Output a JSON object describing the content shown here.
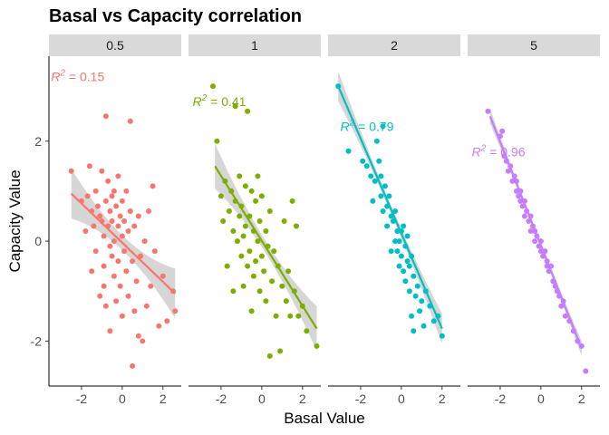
{
  "chart_data": {
    "type": "scatter",
    "title": "Basal vs Capacity correlation",
    "xlabel": "Basal Value",
    "ylabel": "Capacity Value",
    "xlim": [
      -3.6,
      2.9
    ],
    "ylim": [
      -2.9,
      3.7
    ],
    "x_ticks": [
      "-2",
      "0",
      "2"
    ],
    "y_ticks": [
      "-2",
      "0",
      "2"
    ],
    "x_tick_values": [
      -2,
      0,
      2
    ],
    "y_tick_values": [
      -2,
      0,
      2
    ],
    "grid": false,
    "facets": [
      {
        "label": "0.5",
        "color": "#F8766D",
        "r2_prefix": "R",
        "r2_sup": "2",
        "r2_value": "=  0.15",
        "r2_label_pos": [
          -3.5,
          3.2
        ],
        "fit": {
          "x": [
            -2.5,
            2.6
          ],
          "y": [
            0.95,
            -1.05
          ]
        },
        "band_half_width": {
          "start": 0.5,
          "mid": 0.15,
          "end": 0.5
        },
        "points": [
          [
            -2.5,
            1.4
          ],
          [
            -2.0,
            0.8
          ],
          [
            -1.8,
            0.2
          ],
          [
            -1.7,
            0.9
          ],
          [
            -1.6,
            1.5
          ],
          [
            -1.5,
            0.6
          ],
          [
            -1.5,
            -0.6
          ],
          [
            -1.4,
            0.3
          ],
          [
            -1.3,
            -0.2
          ],
          [
            -1.3,
            1.0
          ],
          [
            -1.2,
            0.7
          ],
          [
            -1.1,
            0.5
          ],
          [
            -1.1,
            -1.1
          ],
          [
            -1.0,
            1.4
          ],
          [
            -1.0,
            0.4
          ],
          [
            -0.9,
            0.1
          ],
          [
            -0.9,
            -0.5
          ],
          [
            -0.9,
            -0.9
          ],
          [
            -0.8,
            2.5
          ],
          [
            -0.8,
            0.8
          ],
          [
            -0.8,
            -1.3
          ],
          [
            -0.7,
            0.3
          ],
          [
            -0.7,
            1.2
          ],
          [
            -0.6,
            -0.1
          ],
          [
            -0.6,
            0.6
          ],
          [
            -0.6,
            -1.8
          ],
          [
            -0.5,
            0.9
          ],
          [
            -0.5,
            -0.3
          ],
          [
            -0.5,
            0.4
          ],
          [
            -0.4,
            1.0
          ],
          [
            -0.4,
            0.0
          ],
          [
            -0.4,
            -0.7
          ],
          [
            -0.3,
            0.7
          ],
          [
            -0.3,
            -1.2
          ],
          [
            -0.2,
            0.3
          ],
          [
            -0.2,
            1.3
          ],
          [
            -0.2,
            -0.4
          ],
          [
            -0.1,
            0.5
          ],
          [
            -0.1,
            -0.9
          ],
          [
            0.0,
            0.1
          ],
          [
            0.0,
            0.8
          ],
          [
            0.0,
            -1.5
          ],
          [
            0.1,
            -0.2
          ],
          [
            0.1,
            0.4
          ],
          [
            0.2,
            1.0
          ],
          [
            0.2,
            -0.6
          ],
          [
            0.3,
            0.2
          ],
          [
            0.3,
            -1.1
          ],
          [
            0.4,
            0.6
          ],
          [
            0.4,
            2.4
          ],
          [
            0.5,
            -0.4
          ],
          [
            0.5,
            -2.5
          ],
          [
            0.6,
            0.3
          ],
          [
            0.6,
            -1.4
          ],
          [
            0.7,
            -0.8
          ],
          [
            0.8,
            0.5
          ],
          [
            0.8,
            -1.9
          ],
          [
            0.9,
            -0.3
          ],
          [
            1.0,
            -2.0
          ],
          [
            1.1,
            0.0
          ],
          [
            1.2,
            -1.3
          ],
          [
            1.3,
            0.6
          ],
          [
            1.4,
            -0.9
          ],
          [
            1.5,
            1.1
          ],
          [
            1.6,
            -0.2
          ],
          [
            1.8,
            -1.7
          ],
          [
            2.0,
            -0.7
          ],
          [
            2.2,
            -1.6
          ],
          [
            2.5,
            -1.0
          ],
          [
            2.6,
            -1.4
          ]
        ]
      },
      {
        "label": "1",
        "color": "#7CAE00",
        "r2_prefix": "R",
        "r2_sup": "2",
        "r2_value": "=  0.41",
        "r2_label_pos": [
          -3.4,
          2.7
        ],
        "fit": {
          "x": [
            -2.3,
            2.7
          ],
          "y": [
            1.5,
            -1.75
          ]
        },
        "band_half_width": {
          "start": 0.45,
          "mid": 0.12,
          "end": 0.45
        },
        "points": [
          [
            -2.4,
            3.1
          ],
          [
            -2.2,
            2.0
          ],
          [
            -2.0,
            0.9
          ],
          [
            -1.9,
            0.4
          ],
          [
            -1.8,
            1.2
          ],
          [
            -1.7,
            -0.5
          ],
          [
            -1.6,
            0.6
          ],
          [
            -1.5,
            1.0
          ],
          [
            -1.4,
            0.2
          ],
          [
            -1.4,
            -1.0
          ],
          [
            -1.3,
            2.7
          ],
          [
            -1.3,
            0.8
          ],
          [
            -1.2,
            0.0
          ],
          [
            -1.1,
            0.5
          ],
          [
            -1.1,
            1.3
          ],
          [
            -1.0,
            -0.3
          ],
          [
            -1.0,
            0.7
          ],
          [
            -0.9,
            0.1
          ],
          [
            -0.9,
            -0.9
          ],
          [
            -0.8,
            1.1
          ],
          [
            -0.8,
            0.3
          ],
          [
            -0.7,
            -0.5
          ],
          [
            -0.7,
            2.6
          ],
          [
            -0.6,
            0.5
          ],
          [
            -0.6,
            -0.2
          ],
          [
            -0.5,
            1.0
          ],
          [
            -0.5,
            -1.4
          ],
          [
            -0.4,
            0.2
          ],
          [
            -0.4,
            -0.7
          ],
          [
            -0.3,
            0.8
          ],
          [
            -0.3,
            -0.4
          ],
          [
            -0.2,
            1.3
          ],
          [
            -0.2,
            0.0
          ],
          [
            -0.1,
            -1.0
          ],
          [
            -0.1,
            0.4
          ],
          [
            0.0,
            -0.3
          ],
          [
            0.0,
            0.9
          ],
          [
            0.1,
            -0.6
          ],
          [
            0.2,
            0.2
          ],
          [
            0.2,
            -1.2
          ],
          [
            0.3,
            -0.1
          ],
          [
            0.4,
            0.6
          ],
          [
            0.4,
            -2.3
          ],
          [
            0.5,
            -0.8
          ],
          [
            0.6,
            -0.2
          ],
          [
            0.7,
            -1.5
          ],
          [
            0.8,
            -0.5
          ],
          [
            0.9,
            -2.2
          ],
          [
            1.0,
            -0.9
          ],
          [
            1.1,
            0.4
          ],
          [
            1.2,
            -1.2
          ],
          [
            1.3,
            -0.6
          ],
          [
            1.4,
            -1.5
          ],
          [
            1.5,
            0.8
          ],
          [
            1.6,
            -1.0
          ],
          [
            1.8,
            -1.5
          ],
          [
            2.0,
            -1.3
          ],
          [
            2.2,
            -1.8
          ],
          [
            2.7,
            -2.1
          ],
          [
            1.7,
            0.3
          ]
        ]
      },
      {
        "label": "2",
        "color": "#00BFC4",
        "r2_prefix": "R",
        "r2_sup": "2",
        "r2_value": "=  0.79",
        "r2_label_pos": [
          -3.0,
          2.2
        ],
        "fit": {
          "x": [
            -3.1,
            2.0
          ],
          "y": [
            3.1,
            -1.75
          ]
        },
        "band_half_width": {
          "start": 0.3,
          "mid": 0.08,
          "end": 0.25
        },
        "points": [
          [
            -3.1,
            3.1
          ],
          [
            -2.6,
            1.8
          ],
          [
            -1.9,
            1.6
          ],
          [
            -1.7,
            1.5
          ],
          [
            -1.5,
            1.3
          ],
          [
            -1.4,
            0.8
          ],
          [
            -1.3,
            1.2
          ],
          [
            -1.2,
            2.0
          ],
          [
            -1.1,
            1.6
          ],
          [
            -1.0,
            0.9
          ],
          [
            -1.0,
            1.3
          ],
          [
            -0.9,
            0.6
          ],
          [
            -0.9,
            2.3
          ],
          [
            -0.8,
            1.1
          ],
          [
            -0.7,
            0.7
          ],
          [
            -0.7,
            0.3
          ],
          [
            -0.6,
            0.9
          ],
          [
            -0.5,
            0.5
          ],
          [
            -0.5,
            -0.2
          ],
          [
            -0.4,
            0.4
          ],
          [
            -0.3,
            0.0
          ],
          [
            -0.3,
            0.6
          ],
          [
            -0.2,
            -0.2
          ],
          [
            -0.2,
            0.2
          ],
          [
            -0.1,
            0.0
          ],
          [
            -0.1,
            -0.5
          ],
          [
            0.0,
            0.2
          ],
          [
            0.0,
            -0.3
          ],
          [
            0.1,
            -0.6
          ],
          [
            0.1,
            0.3
          ],
          [
            0.2,
            -0.1
          ],
          [
            0.2,
            -0.8
          ],
          [
            0.3,
            -0.4
          ],
          [
            0.3,
            0.1
          ],
          [
            0.4,
            -1.0
          ],
          [
            0.4,
            -0.5
          ],
          [
            0.5,
            -0.3
          ],
          [
            0.5,
            -1.5
          ],
          [
            0.6,
            -0.7
          ],
          [
            0.7,
            -1.1
          ],
          [
            0.8,
            -0.9
          ],
          [
            0.9,
            -1.4
          ],
          [
            1.0,
            -1.2
          ],
          [
            1.1,
            -1.7
          ],
          [
            1.2,
            -1.0
          ],
          [
            1.4,
            -1.3
          ],
          [
            1.6,
            -1.6
          ],
          [
            1.8,
            -1.5
          ],
          [
            2.0,
            -1.9
          ],
          [
            0.6,
            -1.8
          ]
        ]
      },
      {
        "label": "5",
        "color": "#C77CFF",
        "r2_prefix": "R",
        "r2_sup": "2",
        "r2_value": "=  0.96",
        "r2_label_pos": [
          -3.4,
          1.7
        ],
        "fit": {
          "x": [
            -2.5,
            2.0
          ],
          "y": [
            2.5,
            -2.15
          ]
        },
        "band_half_width": {
          "start": 0.15,
          "mid": 0.05,
          "end": 0.15
        },
        "points": [
          [
            -2.6,
            2.6
          ],
          [
            -2.0,
            2.1
          ],
          [
            -1.9,
            2.2
          ],
          [
            -1.8,
            1.7
          ],
          [
            -1.7,
            1.6
          ],
          [
            -1.6,
            1.4
          ],
          [
            -1.5,
            1.5
          ],
          [
            -1.4,
            1.2
          ],
          [
            -1.3,
            1.3
          ],
          [
            -1.2,
            1.0
          ],
          [
            -1.2,
            1.2
          ],
          [
            -1.1,
            0.9
          ],
          [
            -1.0,
            1.0
          ],
          [
            -1.0,
            0.8
          ],
          [
            -0.9,
            0.7
          ],
          [
            -0.8,
            0.8
          ],
          [
            -0.8,
            0.5
          ],
          [
            -0.7,
            0.6
          ],
          [
            -0.6,
            0.4
          ],
          [
            -0.5,
            0.5
          ],
          [
            -0.5,
            0.2
          ],
          [
            -0.4,
            0.3
          ],
          [
            -0.3,
            0.2
          ],
          [
            -0.3,
            0.0
          ],
          [
            -0.2,
            0.1
          ],
          [
            -0.1,
            -0.1
          ],
          [
            0.0,
            0.0
          ],
          [
            0.0,
            -0.2
          ],
          [
            0.1,
            -0.3
          ],
          [
            0.2,
            -0.2
          ],
          [
            0.3,
            -0.4
          ],
          [
            0.3,
            -0.5
          ],
          [
            0.4,
            -0.6
          ],
          [
            0.5,
            -0.5
          ],
          [
            0.6,
            -0.8
          ],
          [
            0.7,
            -0.9
          ],
          [
            0.8,
            -1.0
          ],
          [
            0.9,
            -1.1
          ],
          [
            1.0,
            -1.3
          ],
          [
            1.1,
            -1.2
          ],
          [
            1.2,
            -1.5
          ],
          [
            1.4,
            -1.6
          ],
          [
            1.6,
            -1.8
          ],
          [
            1.8,
            -2.0
          ],
          [
            2.0,
            -2.1
          ],
          [
            2.2,
            -2.6
          ]
        ]
      }
    ]
  }
}
